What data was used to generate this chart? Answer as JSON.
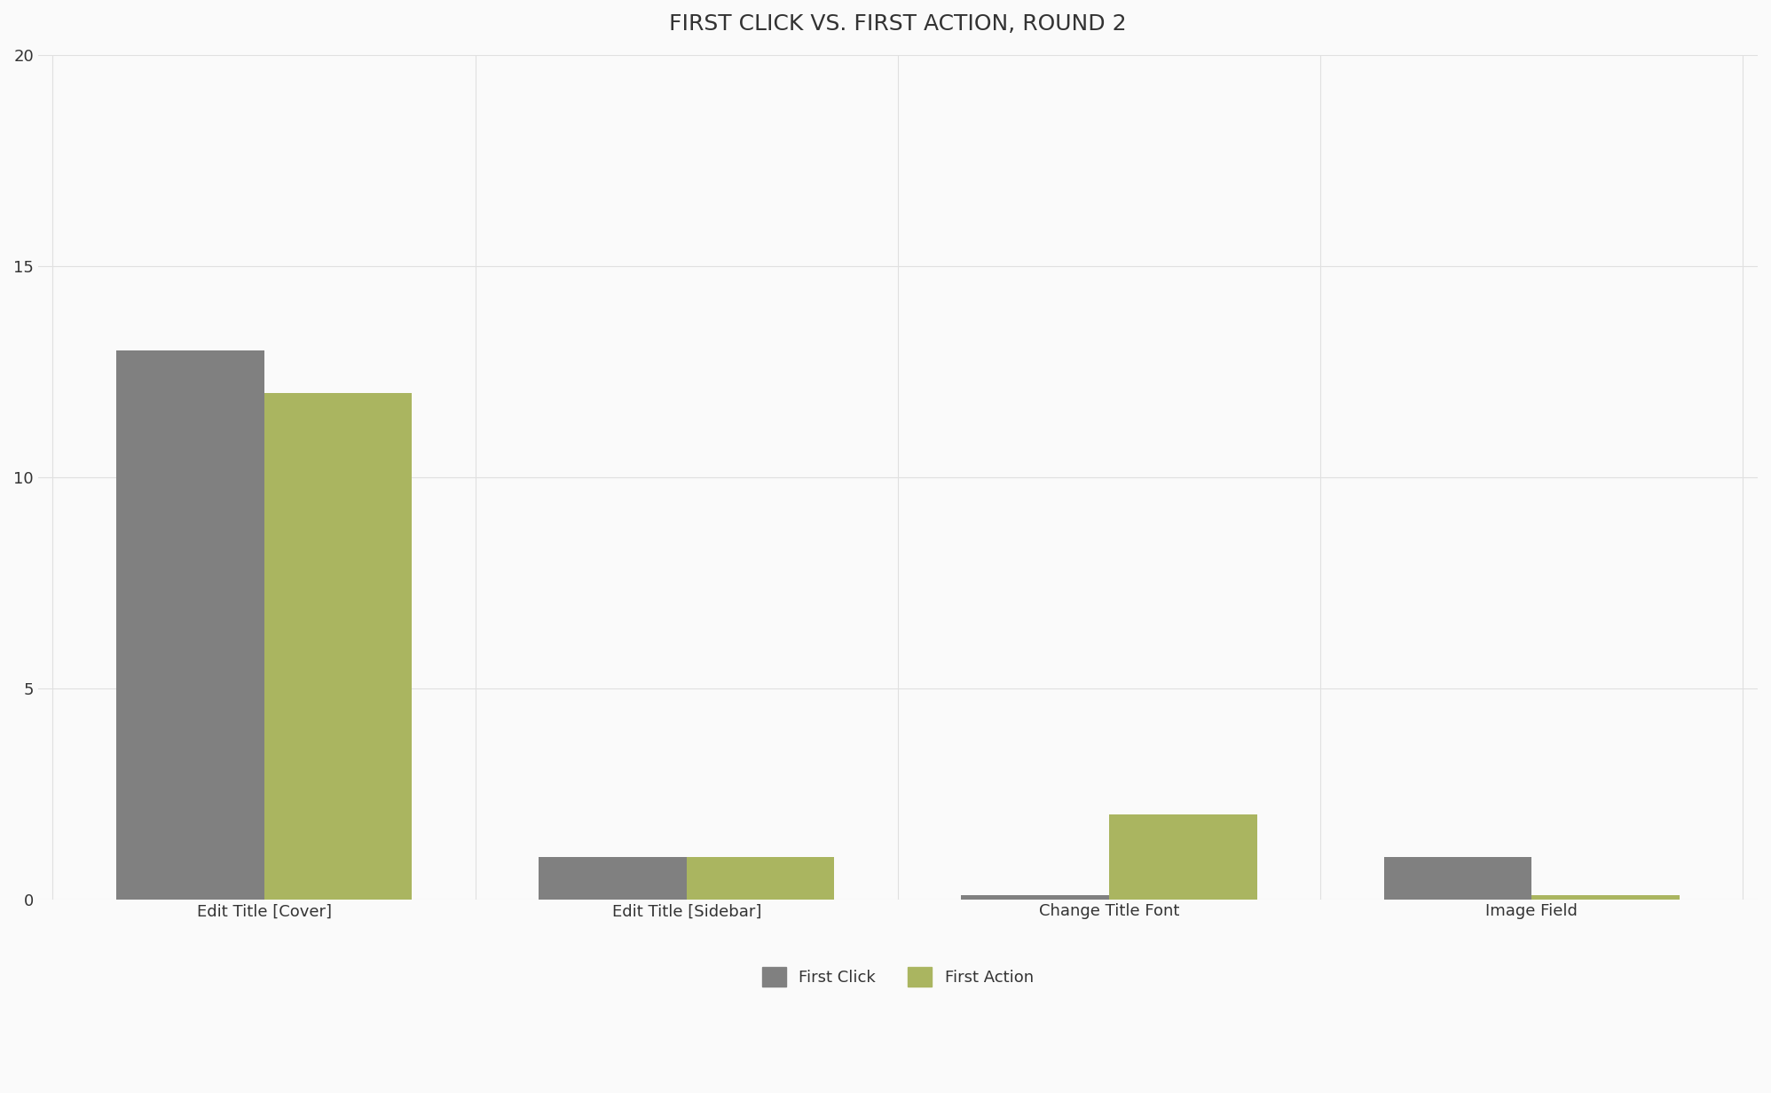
{
  "title": "FIRST CLICK VS. FIRST ACTION, ROUND 2",
  "categories": [
    "Edit Title [Cover]",
    "Edit Title [Sidebar]",
    "Change Title Font",
    "Image Field"
  ],
  "first_click": [
    13,
    1,
    0.1,
    1
  ],
  "first_action": [
    12,
    1,
    2,
    0.1
  ],
  "first_click_color": "#808080",
  "first_action_color": "#aab560",
  "background_color": "#fafafa",
  "grid_color": "#e0e0e0",
  "ylim": [
    0,
    20
  ],
  "yticks": [
    0,
    5,
    10,
    15,
    20
  ],
  "legend_labels": [
    "First Click",
    "First Action"
  ],
  "bar_width": 0.35,
  "title_fontsize": 18,
  "tick_fontsize": 13,
  "legend_fontsize": 13
}
